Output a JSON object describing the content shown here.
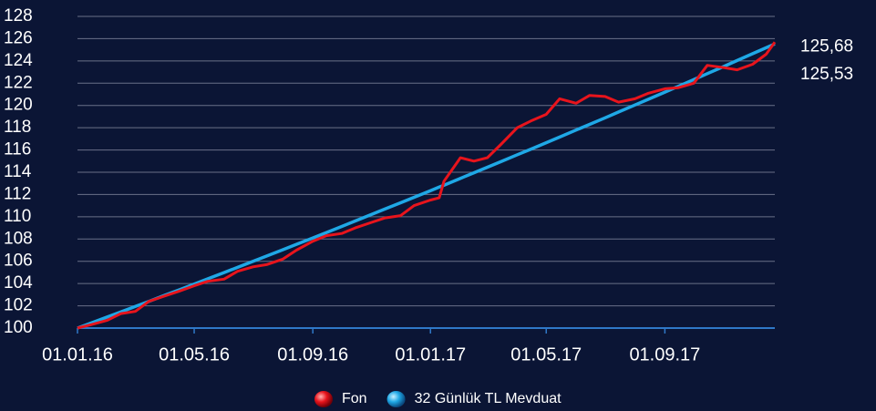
{
  "chart_data": {
    "type": "line",
    "x": [
      "01.01.16",
      "15.01.16",
      "01.02.16",
      "15.02.16",
      "01.03.16",
      "15.03.16",
      "01.04.16",
      "15.04.16",
      "01.05.16",
      "15.05.16",
      "01.06.16",
      "15.06.16",
      "01.07.16",
      "15.07.16",
      "01.08.16",
      "15.08.16",
      "01.09.16",
      "15.09.16",
      "01.10.16",
      "15.10.16",
      "01.11.16",
      "15.11.16",
      "01.12.16",
      "15.12.16",
      "01.01.17",
      "10.01.17",
      "15.01.17",
      "01.02.17",
      "15.02.17",
      "01.03.17",
      "15.03.17",
      "01.04.17",
      "15.04.17",
      "01.05.17",
      "15.05.17",
      "01.06.17",
      "15.06.17",
      "01.07.17",
      "15.07.17",
      "01.08.17",
      "15.08.17",
      "01.09.17",
      "15.09.17",
      "01.10.17",
      "15.10.17",
      "01.11.17",
      "15.11.17",
      "01.12.17",
      "15.12.17",
      "24.12.17"
    ],
    "series": [
      {
        "name": "Fon",
        "color": "#e8141c",
        "values": [
          100.0,
          100.3,
          100.7,
          101.3,
          101.5,
          102.4,
          102.9,
          103.3,
          103.8,
          104.2,
          104.4,
          105.1,
          105.5,
          105.7,
          106.2,
          107.0,
          107.8,
          108.3,
          108.5,
          109.0,
          109.5,
          109.9,
          110.1,
          111.0,
          111.5,
          111.7,
          113.2,
          115.3,
          115.0,
          115.3,
          116.5,
          118.0,
          118.6,
          119.2,
          120.6,
          120.2,
          120.9,
          120.8,
          120.3,
          120.6,
          121.1,
          121.5,
          121.6,
          122.0,
          123.6,
          123.4,
          123.2,
          123.7,
          124.6,
          125.68
        ],
        "value_labels": [
          null,
          null,
          null,
          null,
          null,
          null,
          null,
          null,
          null,
          null,
          null,
          null,
          null,
          null,
          null,
          null,
          null,
          null,
          null,
          null,
          null,
          null,
          null,
          null,
          null,
          null,
          null,
          null,
          null,
          null,
          null,
          null,
          null,
          null,
          null,
          null,
          null,
          null,
          null,
          null,
          null,
          null,
          null,
          null,
          null,
          null,
          null,
          null,
          null,
          "125,68"
        ]
      },
      {
        "name": "32 Günlük TL Mevduat",
        "color": "#1fa8e6",
        "values": [
          100.0,
          100.45,
          101.0,
          101.45,
          101.94,
          102.4,
          102.96,
          103.42,
          103.95,
          104.42,
          104.99,
          105.45,
          105.99,
          106.47,
          107.04,
          107.52,
          108.1,
          108.58,
          109.13,
          109.62,
          110.21,
          110.7,
          111.26,
          111.75,
          112.35,
          112.67,
          112.84,
          113.45,
          113.95,
          114.45,
          114.95,
          115.57,
          116.07,
          116.65,
          117.16,
          117.79,
          118.3,
          118.89,
          119.41,
          120.04,
          120.56,
          121.2,
          121.72,
          122.33,
          122.86,
          123.5,
          124.04,
          124.65,
          125.18,
          125.53
        ],
        "value_labels": [
          null,
          null,
          null,
          null,
          null,
          null,
          null,
          null,
          null,
          null,
          null,
          null,
          null,
          null,
          null,
          null,
          null,
          null,
          null,
          null,
          null,
          null,
          null,
          null,
          null,
          null,
          null,
          null,
          null,
          null,
          null,
          null,
          null,
          null,
          null,
          null,
          null,
          null,
          null,
          null,
          null,
          null,
          null,
          null,
          null,
          null,
          null,
          null,
          null,
          "125,53"
        ]
      }
    ],
    "xlim": [
      "01.01.16",
      "24.12.17"
    ],
    "xticks": [
      "01.01.16",
      "01.05.16",
      "01.09.16",
      "01.01.17",
      "01.05.17",
      "01.09.17"
    ],
    "ylim": [
      100,
      128
    ],
    "yticks": [
      100,
      102,
      104,
      106,
      108,
      110,
      112,
      114,
      116,
      118,
      120,
      122,
      124,
      126,
      128
    ],
    "grid": true,
    "legend": "bottom"
  }
}
